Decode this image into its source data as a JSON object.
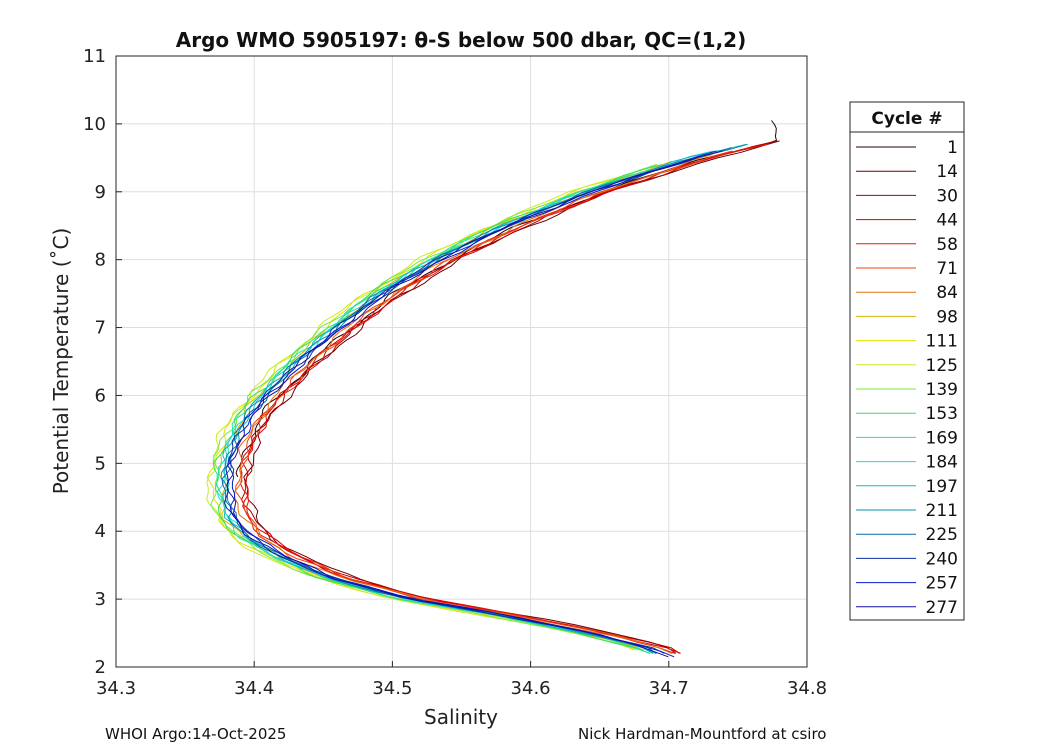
{
  "chart_data": {
    "type": "line",
    "title": "Argo WMO 5905197: θ-S below 500 dbar,  QC=(1,2)",
    "xlabel": "Salinity",
    "ylabel": "Potential Temperature (˚C)",
    "xlim": [
      34.3,
      34.8
    ],
    "ylim": [
      2,
      11
    ],
    "xticks": [
      "34.3",
      "34.4",
      "34.5",
      "34.6",
      "34.7",
      "34.8"
    ],
    "yticks": [
      "2",
      "3",
      "4",
      "5",
      "6",
      "7",
      "8",
      "9",
      "10",
      "11"
    ],
    "grid": true,
    "legend": {
      "title": "Cycle #",
      "placement": "outside-right",
      "entries": [
        "1",
        "14",
        "30",
        "44",
        "58",
        "71",
        "84",
        "98",
        "111",
        "125",
        "139",
        "153",
        "169",
        "184",
        "197",
        "211",
        "225",
        "240",
        "257",
        "277"
      ],
      "colors": [
        "#2a0000",
        "#6e0000",
        "#b00000",
        "#d80000",
        "#e81808",
        "#f04010",
        "#e07010",
        "#d8b400",
        "#e0e000",
        "#c8ec28",
        "#7ce83c",
        "#36e060",
        "#22e4a0",
        "#20d8d8",
        "#10b8c8",
        "#0890a8",
        "#0868a8",
        "#0830a0",
        "#0818c8",
        "#1010a8"
      ]
    },
    "base_profile": {
      "theta": [
        2.15,
        2.3,
        2.5,
        2.75,
        3.0,
        3.3,
        3.6,
        3.9,
        4.2,
        4.5,
        4.8,
        5.1,
        5.4,
        5.7,
        6.0,
        6.5,
        7.0,
        7.5,
        8.0,
        8.5,
        9.0,
        9.5,
        9.75
      ],
      "salinity": [
        34.706,
        34.69,
        34.65,
        34.59,
        34.52,
        34.465,
        34.43,
        34.405,
        34.392,
        34.388,
        34.388,
        34.39,
        34.396,
        34.404,
        34.416,
        34.44,
        34.468,
        34.5,
        34.54,
        34.59,
        34.65,
        34.725,
        34.775
      ]
    },
    "series": [
      {
        "name": "1",
        "theta_range": [
          4.8,
          10.05
        ],
        "salinity_offset": 0.002
      },
      {
        "name": "14",
        "theta_range": [
          2.2,
          9.75
        ],
        "salinity_offset": 0.008
      },
      {
        "name": "30",
        "theta_range": [
          2.2,
          9.75
        ],
        "salinity_offset": 0.006
      },
      {
        "name": "44",
        "theta_range": [
          2.2,
          9.7
        ],
        "salinity_offset": 0.005
      },
      {
        "name": "58",
        "theta_range": [
          2.2,
          9.7
        ],
        "salinity_offset": 0.004
      },
      {
        "name": "71",
        "theta_range": [
          2.2,
          9.6
        ],
        "salinity_offset": 0.002
      },
      {
        "name": "84",
        "theta_range": [
          2.2,
          9.55
        ],
        "salinity_offset": 0.0
      },
      {
        "name": "98",
        "theta_range": [
          2.25,
          9.45
        ],
        "salinity_offset": -0.012
      },
      {
        "name": "111",
        "theta_range": [
          2.25,
          9.4
        ],
        "salinity_offset": -0.018
      },
      {
        "name": "125",
        "theta_range": [
          2.25,
          9.4
        ],
        "salinity_offset": -0.02
      },
      {
        "name": "139",
        "theta_range": [
          2.25,
          9.4
        ],
        "salinity_offset": -0.017
      },
      {
        "name": "153",
        "theta_range": [
          2.2,
          9.4
        ],
        "salinity_offset": -0.015
      },
      {
        "name": "169",
        "theta_range": [
          2.2,
          9.45
        ],
        "salinity_offset": -0.013
      },
      {
        "name": "184",
        "theta_range": [
          2.2,
          9.6
        ],
        "salinity_offset": -0.011
      },
      {
        "name": "197",
        "theta_range": [
          2.2,
          9.7
        ],
        "salinity_offset": -0.01
      },
      {
        "name": "211",
        "theta_range": [
          2.2,
          9.7
        ],
        "salinity_offset": -0.009
      },
      {
        "name": "225",
        "theta_range": [
          2.2,
          9.65
        ],
        "salinity_offset": -0.008
      },
      {
        "name": "240",
        "theta_range": [
          2.2,
          9.6
        ],
        "salinity_offset": -0.007
      },
      {
        "name": "257",
        "theta_range": [
          2.15,
          9.6
        ],
        "salinity_offset": -0.005
      },
      {
        "name": "277",
        "theta_range": [
          2.15,
          9.5
        ],
        "salinity_offset": -0.006
      }
    ]
  },
  "footer": {
    "left": "WHOI Argo:14-Oct-2025",
    "right": "Nick Hardman-Mountford at csiro"
  }
}
